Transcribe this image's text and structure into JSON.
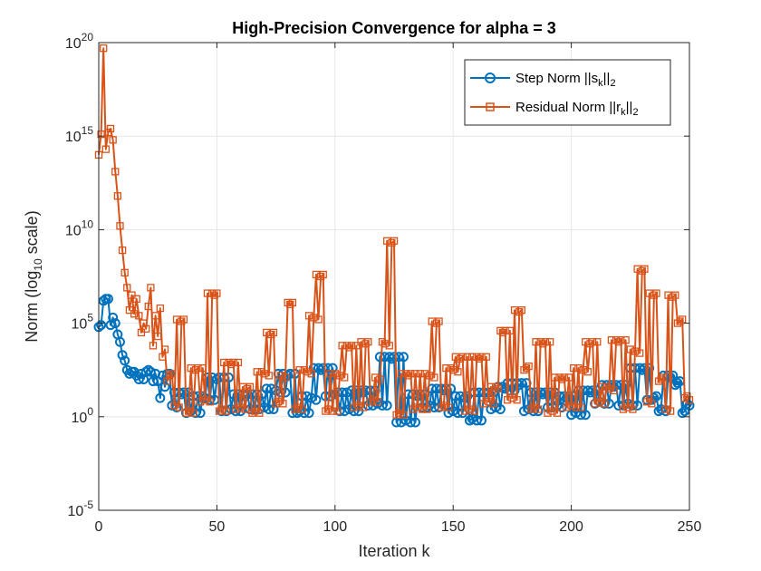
{
  "chart_data": {
    "type": "line",
    "title": "High-Precision Convergence for alpha = 3",
    "xlabel": "Iteration k",
    "ylabel": {
      "prefix": "Norm (log",
      "sub": "10",
      "suffix": " scale)"
    },
    "xlim": [
      0,
      250
    ],
    "ylim_log10": [
      -5,
      20
    ],
    "y_scale": "log",
    "grid": true,
    "legend_position": "top-right",
    "x_ticks": [
      {
        "value": 0,
        "label": "0"
      },
      {
        "value": 50,
        "label": "50"
      },
      {
        "value": 100,
        "label": "100"
      },
      {
        "value": 150,
        "label": "150"
      },
      {
        "value": 200,
        "label": "200"
      },
      {
        "value": 250,
        "label": "250"
      }
    ],
    "y_ticks": [
      {
        "exp": -5,
        "base": "10",
        "sup": "-5"
      },
      {
        "exp": 0,
        "base": "10",
        "sup": "0"
      },
      {
        "exp": 5,
        "base": "10",
        "sup": "5"
      },
      {
        "exp": 10,
        "base": "10",
        "sup": "10"
      },
      {
        "exp": 15,
        "base": "10",
        "sup": "15"
      },
      {
        "exp": 20,
        "base": "10",
        "sup": "20"
      }
    ],
    "series": [
      {
        "name": "Step Norm ||s_k||_2",
        "legend": {
          "prefix": "Step Norm ||s",
          "sub": "k",
          "mid": "||",
          "sub2": "2"
        },
        "color": "#0072BD",
        "marker": "circle",
        "keypoints": [
          [
            0,
            4.8
          ],
          [
            1,
            4.9
          ],
          [
            2,
            6.2
          ],
          [
            3,
            6.3
          ],
          [
            4,
            6.3
          ],
          [
            5,
            4.9
          ],
          [
            6,
            5.3
          ],
          [
            7,
            5.0
          ],
          [
            8,
            4.4
          ],
          [
            9,
            4.0
          ],
          [
            10,
            3.3
          ],
          [
            11,
            3.0
          ],
          [
            12,
            2.5
          ],
          [
            13,
            2.3
          ],
          [
            14,
            2.4
          ],
          [
            15,
            2.4
          ],
          [
            16,
            2.2
          ],
          [
            17,
            2.0
          ],
          [
            18,
            2.3
          ],
          [
            19,
            2.0
          ],
          [
            20,
            2.4
          ],
          [
            21,
            2.5
          ],
          [
            22,
            2.4
          ],
          [
            23,
            1.9
          ],
          [
            24,
            2.3
          ],
          [
            25,
            1.9
          ],
          [
            26,
            1.0
          ],
          [
            27,
            2.2
          ],
          [
            28,
            1.6
          ],
          [
            29,
            2.3
          ],
          [
            30,
            2.3
          ],
          [
            31,
            0.6
          ],
          [
            35,
            1.2
          ],
          [
            39,
            0.3
          ],
          [
            45,
            1.0
          ],
          [
            50,
            2.0
          ],
          [
            56,
            0.4
          ],
          [
            62,
            1.1
          ],
          [
            70,
            0.5
          ],
          [
            75,
            1.4
          ],
          [
            80,
            2.2
          ],
          [
            85,
            0.3
          ],
          [
            90,
            1.0
          ],
          [
            94,
            2.5
          ],
          [
            100,
            1.2
          ],
          [
            106,
            0.4
          ],
          [
            112,
            1.3
          ],
          [
            118,
            0.7
          ],
          [
            124,
            3.1
          ],
          [
            130,
            -0.2
          ],
          [
            135,
            1.1
          ],
          [
            140,
            0.6
          ],
          [
            146,
            1.4
          ],
          [
            150,
            0.3
          ],
          [
            155,
            1.0
          ],
          [
            158,
            -0.1
          ],
          [
            164,
            1.2
          ],
          [
            168,
            0.5
          ],
          [
            172,
            1.5
          ],
          [
            178,
            1.7
          ],
          [
            182,
            0.4
          ],
          [
            188,
            1.2
          ],
          [
            194,
            0.6
          ],
          [
            198,
            1.0
          ],
          [
            202,
            0.2
          ],
          [
            208,
            1.3
          ],
          [
            212,
            0.8
          ],
          [
            218,
            1.6
          ],
          [
            224,
            0.7
          ],
          [
            230,
            2.5
          ],
          [
            235,
            1.0
          ],
          [
            238,
            0.4
          ],
          [
            242,
            2.1
          ],
          [
            245,
            1.8
          ],
          [
            248,
            0.3
          ],
          [
            250,
            0.6
          ]
        ]
      },
      {
        "name": "Residual Norm ||r_k||_2",
        "legend": {
          "prefix": "Residual Norm ||r",
          "sub": "k",
          "mid": "||",
          "sub2": "2"
        },
        "color": "#D95319",
        "marker": "square",
        "keypoints": [
          [
            0,
            14.0
          ],
          [
            1,
            15.1
          ],
          [
            2,
            19.7
          ],
          [
            3,
            14.3
          ],
          [
            4,
            15.2
          ],
          [
            5,
            15.4
          ],
          [
            6,
            14.8
          ],
          [
            7,
            13.1
          ],
          [
            8,
            11.8
          ],
          [
            9,
            10.2
          ],
          [
            10,
            8.9
          ],
          [
            11,
            7.7
          ],
          [
            12,
            6.9
          ],
          [
            13,
            5.7
          ],
          [
            14,
            6.5
          ],
          [
            15,
            5.5
          ],
          [
            16,
            6.3
          ],
          [
            17,
            5.4
          ],
          [
            18,
            4.5
          ],
          [
            19,
            5.0
          ],
          [
            20,
            4.7
          ],
          [
            21,
            5.9
          ],
          [
            22,
            6.9
          ],
          [
            23,
            3.8
          ],
          [
            24,
            5.4
          ],
          [
            25,
            4.3
          ],
          [
            26,
            5.8
          ],
          [
            27,
            3.2
          ],
          [
            28,
            3.6
          ],
          [
            29,
            1.9
          ],
          [
            30,
            2.2
          ],
          [
            32,
            0.6
          ],
          [
            35,
            5.1
          ],
          [
            38,
            0.3
          ],
          [
            41,
            2.5
          ],
          [
            45,
            0.9
          ],
          [
            49,
            6.5
          ],
          [
            52,
            0.4
          ],
          [
            56,
            2.8
          ],
          [
            60,
            0.5
          ],
          [
            63,
            1.5
          ],
          [
            66,
            0.3
          ],
          [
            70,
            2.3
          ],
          [
            73,
            4.4
          ],
          [
            76,
            0.8
          ],
          [
            79,
            2.1
          ],
          [
            81,
            6.0
          ],
          [
            84,
            0.5
          ],
          [
            88,
            2.4
          ],
          [
            91,
            5.3
          ],
          [
            94,
            7.5
          ],
          [
            97,
            0.4
          ],
          [
            102,
            2.2
          ],
          [
            106,
            3.7
          ],
          [
            110,
            0.6
          ],
          [
            113,
            3.9
          ],
          [
            116,
            0.9
          ],
          [
            119,
            2.0
          ],
          [
            121,
            3.9
          ],
          [
            124,
            9.3
          ],
          [
            127,
            0.2
          ],
          [
            131,
            2.2
          ],
          [
            135,
            0.5
          ],
          [
            140,
            2.2
          ],
          [
            143,
            5.0
          ],
          [
            146,
            0.6
          ],
          [
            150,
            2.5
          ],
          [
            153,
            3.1
          ],
          [
            157,
            0.4
          ],
          [
            161,
            3.1
          ],
          [
            165,
            0.8
          ],
          [
            169,
            1.5
          ],
          [
            171,
            4.5
          ],
          [
            175,
            1.0
          ],
          [
            178,
            5.6
          ],
          [
            181,
            2.6
          ],
          [
            184,
            0.5
          ],
          [
            188,
            3.9
          ],
          [
            192,
            0.3
          ],
          [
            196,
            2.0
          ],
          [
            200,
            0.6
          ],
          [
            205,
            2.5
          ],
          [
            208,
            3.9
          ],
          [
            212,
            0.8
          ],
          [
            216,
            1.5
          ],
          [
            220,
            4.0
          ],
          [
            224,
            0.5
          ],
          [
            227,
            3.5
          ],
          [
            230,
            7.8
          ],
          [
            232,
            0.8
          ],
          [
            235,
            6.5
          ],
          [
            238,
            2.0
          ],
          [
            240,
            0.4
          ],
          [
            243,
            6.4
          ],
          [
            246,
            5.1
          ],
          [
            248,
            1.0
          ],
          [
            250,
            0.9
          ]
        ]
      }
    ]
  }
}
